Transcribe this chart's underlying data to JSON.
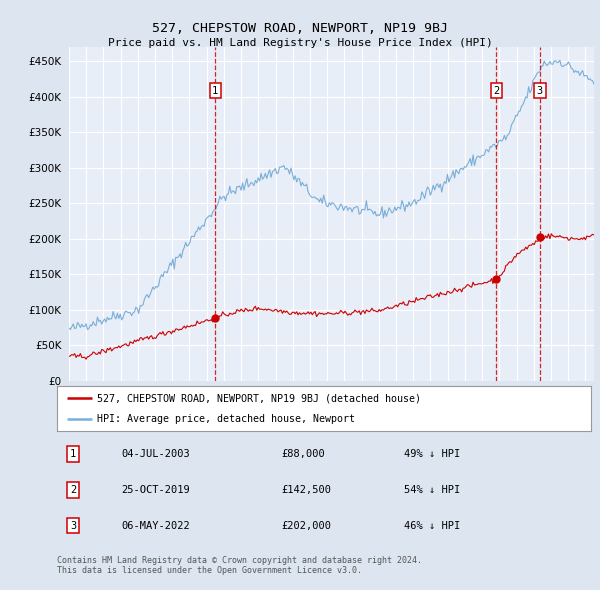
{
  "title": "527, CHEPSTOW ROAD, NEWPORT, NP19 9BJ",
  "subtitle": "Price paid vs. HM Land Registry's House Price Index (HPI)",
  "ylim": [
    0,
    470000
  ],
  "yticks": [
    0,
    50000,
    100000,
    150000,
    200000,
    250000,
    300000,
    350000,
    400000,
    450000
  ],
  "background_color": "#dde5f0",
  "plot_bg_color": "#e8eef8",
  "grid_color": "#ffffff",
  "sale_color": "#cc0000",
  "hpi_color": "#7aaed6",
  "dashed_line_color": "#cc0000",
  "legend_label_sale": "527, CHEPSTOW ROAD, NEWPORT, NP19 9BJ (detached house)",
  "legend_label_hpi": "HPI: Average price, detached house, Newport",
  "sales": [
    {
      "date_num": 2003.5,
      "price": 88000,
      "label": "1"
    },
    {
      "date_num": 2019.83,
      "price": 142500,
      "label": "2"
    },
    {
      "date_num": 2022.35,
      "price": 202000,
      "label": "3"
    }
  ],
  "table_rows": [
    {
      "num": "1",
      "date": "04-JUL-2003",
      "price": "£88,000",
      "hpi": "49% ↓ HPI"
    },
    {
      "num": "2",
      "date": "25-OCT-2019",
      "price": "£142,500",
      "hpi": "54% ↓ HPI"
    },
    {
      "num": "3",
      "date": "06-MAY-2022",
      "price": "£202,000",
      "hpi": "46% ↓ HPI"
    }
  ],
  "footer": "Contains HM Land Registry data © Crown copyright and database right 2024.\nThis data is licensed under the Open Government Licence v3.0.",
  "xmin": 1995.0,
  "xmax": 2025.5
}
